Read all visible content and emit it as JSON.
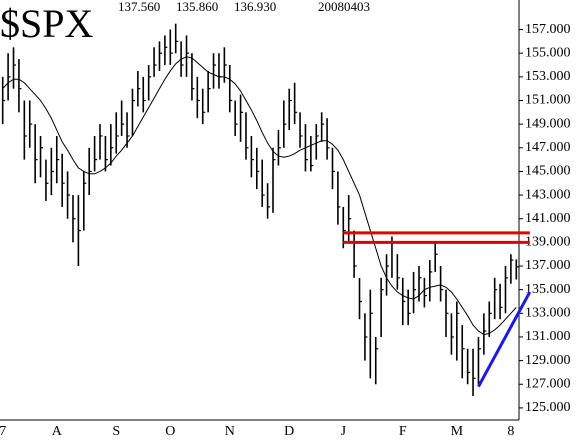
{
  "chart_data": {
    "type": "ohlc",
    "title": "$SPX",
    "header_values": [
      "137.560",
      "135.860",
      "136.930"
    ],
    "date": "20080403",
    "categories": [
      "7",
      null,
      null,
      null,
      null,
      null,
      null,
      null,
      null,
      null,
      "A",
      null,
      null,
      null,
      null,
      null,
      null,
      null,
      null,
      null,
      null,
      "S",
      null,
      null,
      null,
      null,
      null,
      null,
      null,
      null,
      null,
      "O",
      null,
      null,
      null,
      null,
      null,
      null,
      null,
      null,
      null,
      null,
      "N",
      null,
      null,
      null,
      null,
      null,
      null,
      null,
      null,
      null,
      null,
      "D",
      null,
      null,
      null,
      null,
      null,
      null,
      null,
      null,
      null,
      "J",
      null,
      null,
      null,
      null,
      null,
      null,
      null,
      null,
      null,
      null,
      "F",
      null,
      null,
      null,
      null,
      null,
      null,
      null,
      null,
      null,
      "M",
      null,
      null,
      null,
      null,
      null,
      null,
      null,
      null,
      null,
      "8",
      null
    ],
    "high": [
      153,
      155,
      155.5,
      154.5,
      151,
      151,
      149,
      148,
      146,
      147,
      148,
      146.5,
      145,
      143,
      143,
      145,
      147,
      148,
      149,
      148,
      149,
      150,
      151,
      150,
      152,
      153.5,
      153,
      154,
      155.5,
      156,
      156.5,
      157,
      157.5,
      156,
      156.5,
      155,
      153,
      152,
      153.5,
      155,
      155,
      155.5,
      154,
      151,
      151.5,
      150,
      148,
      147,
      146,
      144,
      147,
      148.5,
      151,
      152,
      152.5,
      150,
      149,
      148,
      149,
      150,
      149.5,
      147,
      145,
      142,
      143,
      140,
      136,
      133,
      135,
      131,
      136,
      138,
      139.5,
      138,
      136,
      135,
      136.5,
      137,
      136,
      137.5,
      139,
      137,
      135,
      133,
      134,
      132,
      130,
      130,
      131,
      133,
      134,
      136,
      135.5,
      137,
      138,
      137.56
    ],
    "low": [
      149,
      151,
      152,
      150,
      146,
      147,
      144,
      144.5,
      142.5,
      143,
      144,
      142,
      141,
      139,
      137,
      140,
      143,
      145,
      146,
      145,
      145.5,
      146.5,
      148,
      147,
      148,
      150.5,
      150,
      151,
      153,
      153.5,
      154,
      154,
      155,
      153,
      153,
      151,
      149.5,
      149,
      150,
      152,
      152,
      152.5,
      150,
      148,
      147.5,
      146,
      144.5,
      143.5,
      142,
      141,
      141.5,
      145.5,
      147,
      148.5,
      149,
      147,
      145,
      145,
      146,
      147.5,
      146,
      143.5,
      140.5,
      138.5,
      139,
      136,
      132.5,
      129,
      127.5,
      127,
      131,
      134.5,
      136,
      135,
      132,
      132,
      133,
      134,
      133.5,
      134,
      136.5,
      134,
      131,
      129.5,
      129,
      127.5,
      127,
      126,
      127,
      129.5,
      131,
      132.5,
      132.5,
      133,
      135.5,
      135.86
    ],
    "close": [
      151,
      153,
      154,
      152,
      148,
      149,
      146,
      147,
      144,
      145,
      146,
      144,
      143,
      141,
      140,
      144,
      145,
      146,
      148,
      146,
      147,
      148,
      149,
      148,
      151,
      152,
      151,
      153,
      154,
      155,
      155.5,
      155,
      156,
      154,
      155,
      152,
      151,
      150,
      152,
      154,
      153,
      154,
      151,
      149,
      150,
      147,
      146,
      145,
      143,
      142,
      146,
      147,
      149,
      151,
      150,
      148,
      146,
      145.5,
      148,
      149,
      147,
      145,
      142,
      140,
      141,
      137,
      134,
      131,
      133,
      130,
      135,
      137,
      139,
      136,
      134,
      133,
      135,
      136,
      134.5,
      136.5,
      138,
      135,
      133,
      131,
      133,
      130,
      128,
      127.5,
      130,
      131.5,
      133,
      135,
      133.5,
      136,
      137.5,
      136.93
    ],
    "moving_average": [
      152,
      152.5,
      152.8,
      152.8,
      152.5,
      152,
      151.5,
      151,
      150.3,
      149.5,
      148.5,
      147.5,
      146.8,
      146,
      145.3,
      145,
      144.8,
      144.8,
      145,
      145.3,
      145.7,
      146.3,
      146.8,
      147.4,
      148,
      148.8,
      149.6,
      150.4,
      151.2,
      152,
      152.8,
      153.5,
      154.1,
      154.5,
      154.7,
      154.6,
      154.2,
      153.8,
      153.4,
      153.2,
      153,
      153,
      152.8,
      152.4,
      151.8,
      151,
      150.2,
      149.3,
      148.3,
      147.4,
      146.7,
      146.3,
      146.2,
      146.3,
      146.5,
      146.8,
      147,
      147.2,
      147.4,
      147.6,
      147.6,
      147.3,
      146.8,
      146,
      145,
      144,
      143,
      141.5,
      140,
      138.5,
      137,
      136,
      135.3,
      134.8,
      134.5,
      134.3,
      134.2,
      134.5,
      135,
      135.2,
      135.3,
      135.4,
      135.2,
      134.8,
      134.2,
      133.5,
      132.8,
      132,
      131.5,
      131.2,
      131.3,
      131.6,
      132,
      132.5,
      133,
      133.5
    ],
    "color": "#000000",
    "trendlines": [
      {
        "color": "#e00000",
        "points": [
          [
            63,
            139.0
          ],
          [
            97.5,
            139.0
          ]
        ]
      },
      {
        "color": "#e00000",
        "points": [
          [
            63,
            139.8
          ],
          [
            97.5,
            139.8
          ]
        ]
      },
      {
        "color": "#1a1ae0",
        "points": [
          [
            88,
            126.8
          ],
          [
            97.5,
            134.8
          ]
        ]
      }
    ],
    "ylim": [
      122.2,
      159.5
    ],
    "yticks": [
      {
        "value": 125,
        "label": "125.000"
      },
      {
        "value": 127,
        "label": "127.000"
      },
      {
        "value": 129,
        "label": "129.000"
      },
      {
        "value": 131,
        "label": "131.000"
      },
      {
        "value": 133,
        "label": "133.000"
      },
      {
        "value": 135,
        "label": "135.000"
      },
      {
        "value": 137,
        "label": "137.000"
      },
      {
        "value": 139,
        "label": "139.000"
      },
      {
        "value": 141,
        "label": "141.000"
      },
      {
        "value": 143,
        "label": "143.000"
      },
      {
        "value": 145,
        "label": "145.000"
      },
      {
        "value": 147,
        "label": "147.000"
      },
      {
        "value": 149,
        "label": "149.000"
      },
      {
        "value": 151,
        "label": "151.000"
      },
      {
        "value": 153,
        "label": "153.000"
      },
      {
        "value": 155,
        "label": "155.000"
      },
      {
        "value": 157,
        "label": "157.000"
      }
    ]
  }
}
